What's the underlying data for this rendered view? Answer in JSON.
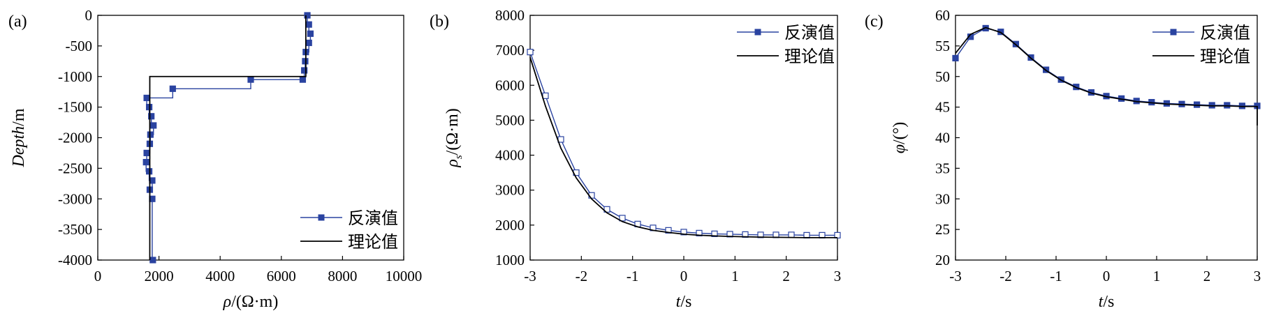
{
  "colors": {
    "inverted": "#2a43a0",
    "theory": "#000000",
    "axis": "#000000"
  },
  "chart_data": [
    {
      "id": "a",
      "panel_label": "(a)",
      "type": "line",
      "xlabel_parts": [
        "ρ",
        "/(Ω·m)"
      ],
      "ylabel": "Depth/m",
      "xlim": [
        0,
        10000
      ],
      "ylim": [
        -4000,
        0
      ],
      "xticks": [
        0,
        2000,
        4000,
        6000,
        8000,
        10000
      ],
      "yticks": [
        0,
        -500,
        -1000,
        -1500,
        -2000,
        -2500,
        -3000,
        -3500,
        -4000
      ],
      "legend_placement": "bottom-right",
      "series": [
        {
          "name": "反演值",
          "marker": "filled-square",
          "step": true,
          "x": [
            6850,
            6900,
            6950,
            6900,
            6800,
            6780,
            6750,
            6700,
            5000,
            2450,
            1600,
            1680,
            1750,
            1820,
            1720,
            1700,
            1600,
            1580,
            1680,
            1780,
            1700,
            1780,
            1800
          ],
          "y": [
            0,
            -150,
            -300,
            -450,
            -600,
            -750,
            -900,
            -1050,
            -1050,
            -1200,
            -1350,
            -1500,
            -1650,
            -1800,
            -1950,
            -2100,
            -2250,
            -2400,
            -2550,
            -2700,
            -2850,
            -3000,
            -4000
          ]
        },
        {
          "name": "理论值",
          "marker": "none",
          "step": true,
          "x": [
            6800,
            6800,
            1700,
            1700
          ],
          "y": [
            0,
            -1000,
            -1000,
            -4000
          ]
        }
      ]
    },
    {
      "id": "b",
      "panel_label": "(b)",
      "type": "line",
      "xlabel_parts": [
        "t",
        "/s"
      ],
      "ylabel_parts": [
        "ρ",
        "s",
        "/(Ω·m)"
      ],
      "xlim": [
        -3,
        3
      ],
      "ylim": [
        1000,
        8000
      ],
      "xticks": [
        -3,
        -2,
        -1,
        0,
        1,
        2,
        3
      ],
      "yticks": [
        1000,
        2000,
        3000,
        4000,
        5000,
        6000,
        7000,
        8000
      ],
      "legend_placement": "top-right",
      "series": [
        {
          "name": "反演值",
          "marker": "open-square",
          "x": [
            -3,
            -2.7,
            -2.4,
            -2.1,
            -1.8,
            -1.5,
            -1.2,
            -0.9,
            -0.6,
            -0.3,
            0,
            0.3,
            0.6,
            0.9,
            1.2,
            1.5,
            1.8,
            2.1,
            2.4,
            2.7,
            3
          ],
          "y": [
            6950,
            5700,
            4450,
            3500,
            2850,
            2450,
            2200,
            2030,
            1920,
            1850,
            1800,
            1770,
            1750,
            1740,
            1730,
            1720,
            1720,
            1720,
            1710,
            1710,
            1710
          ]
        },
        {
          "name": "理论值",
          "marker": "none",
          "x": [
            -3,
            -2.7,
            -2.4,
            -2.1,
            -1.8,
            -1.5,
            -1.2,
            -0.9,
            -0.6,
            -0.3,
            0,
            0.3,
            0.6,
            0.9,
            1.2,
            1.5,
            1.8,
            2.1,
            2.4,
            2.7,
            3
          ],
          "y": [
            6800,
            5400,
            4200,
            3350,
            2750,
            2350,
            2100,
            1950,
            1850,
            1790,
            1740,
            1710,
            1690,
            1675,
            1665,
            1655,
            1650,
            1645,
            1640,
            1640,
            1640
          ]
        }
      ]
    },
    {
      "id": "c",
      "panel_label": "(c)",
      "type": "line",
      "xlabel_parts": [
        "t",
        "/s"
      ],
      "ylabel_parts": [
        "φ",
        "/(°)"
      ],
      "xlim": [
        -3,
        3
      ],
      "ylim": [
        20,
        60
      ],
      "xticks": [
        -3,
        -2,
        -1,
        0,
        1,
        2,
        3
      ],
      "yticks": [
        20,
        25,
        30,
        35,
        40,
        45,
        50,
        55,
        60
      ],
      "legend_placement": "top-right",
      "series": [
        {
          "name": "反演值",
          "marker": "filled-square",
          "x": [
            -3,
            -2.7,
            -2.4,
            -2.1,
            -1.8,
            -1.5,
            -1.2,
            -0.9,
            -0.6,
            -0.3,
            0,
            0.3,
            0.6,
            0.9,
            1.2,
            1.5,
            1.8,
            2.1,
            2.4,
            2.7,
            3
          ],
          "y": [
            53,
            56.5,
            57.9,
            57.3,
            55.3,
            53.1,
            51.1,
            49.5,
            48.3,
            47.4,
            46.8,
            46.4,
            46,
            45.8,
            45.6,
            45.5,
            45.4,
            45.3,
            45.3,
            45.2,
            45.2
          ]
        },
        {
          "name": "理论值",
          "marker": "none",
          "x": [
            -3,
            -2.7,
            -2.4,
            -2.1,
            -1.8,
            -1.5,
            -1.2,
            -0.9,
            -0.6,
            -0.3,
            0,
            0.3,
            0.6,
            0.9,
            1.2,
            1.5,
            1.8,
            2.1,
            2.4,
            2.7,
            3,
            3
          ],
          "y": [
            53.8,
            56.9,
            58,
            57.2,
            55.2,
            53,
            51,
            49.4,
            48.2,
            47.3,
            46.7,
            46.3,
            45.9,
            45.7,
            45.5,
            45.4,
            45.3,
            45.2,
            45.2,
            45.1,
            45.1,
            42
          ]
        }
      ]
    }
  ]
}
